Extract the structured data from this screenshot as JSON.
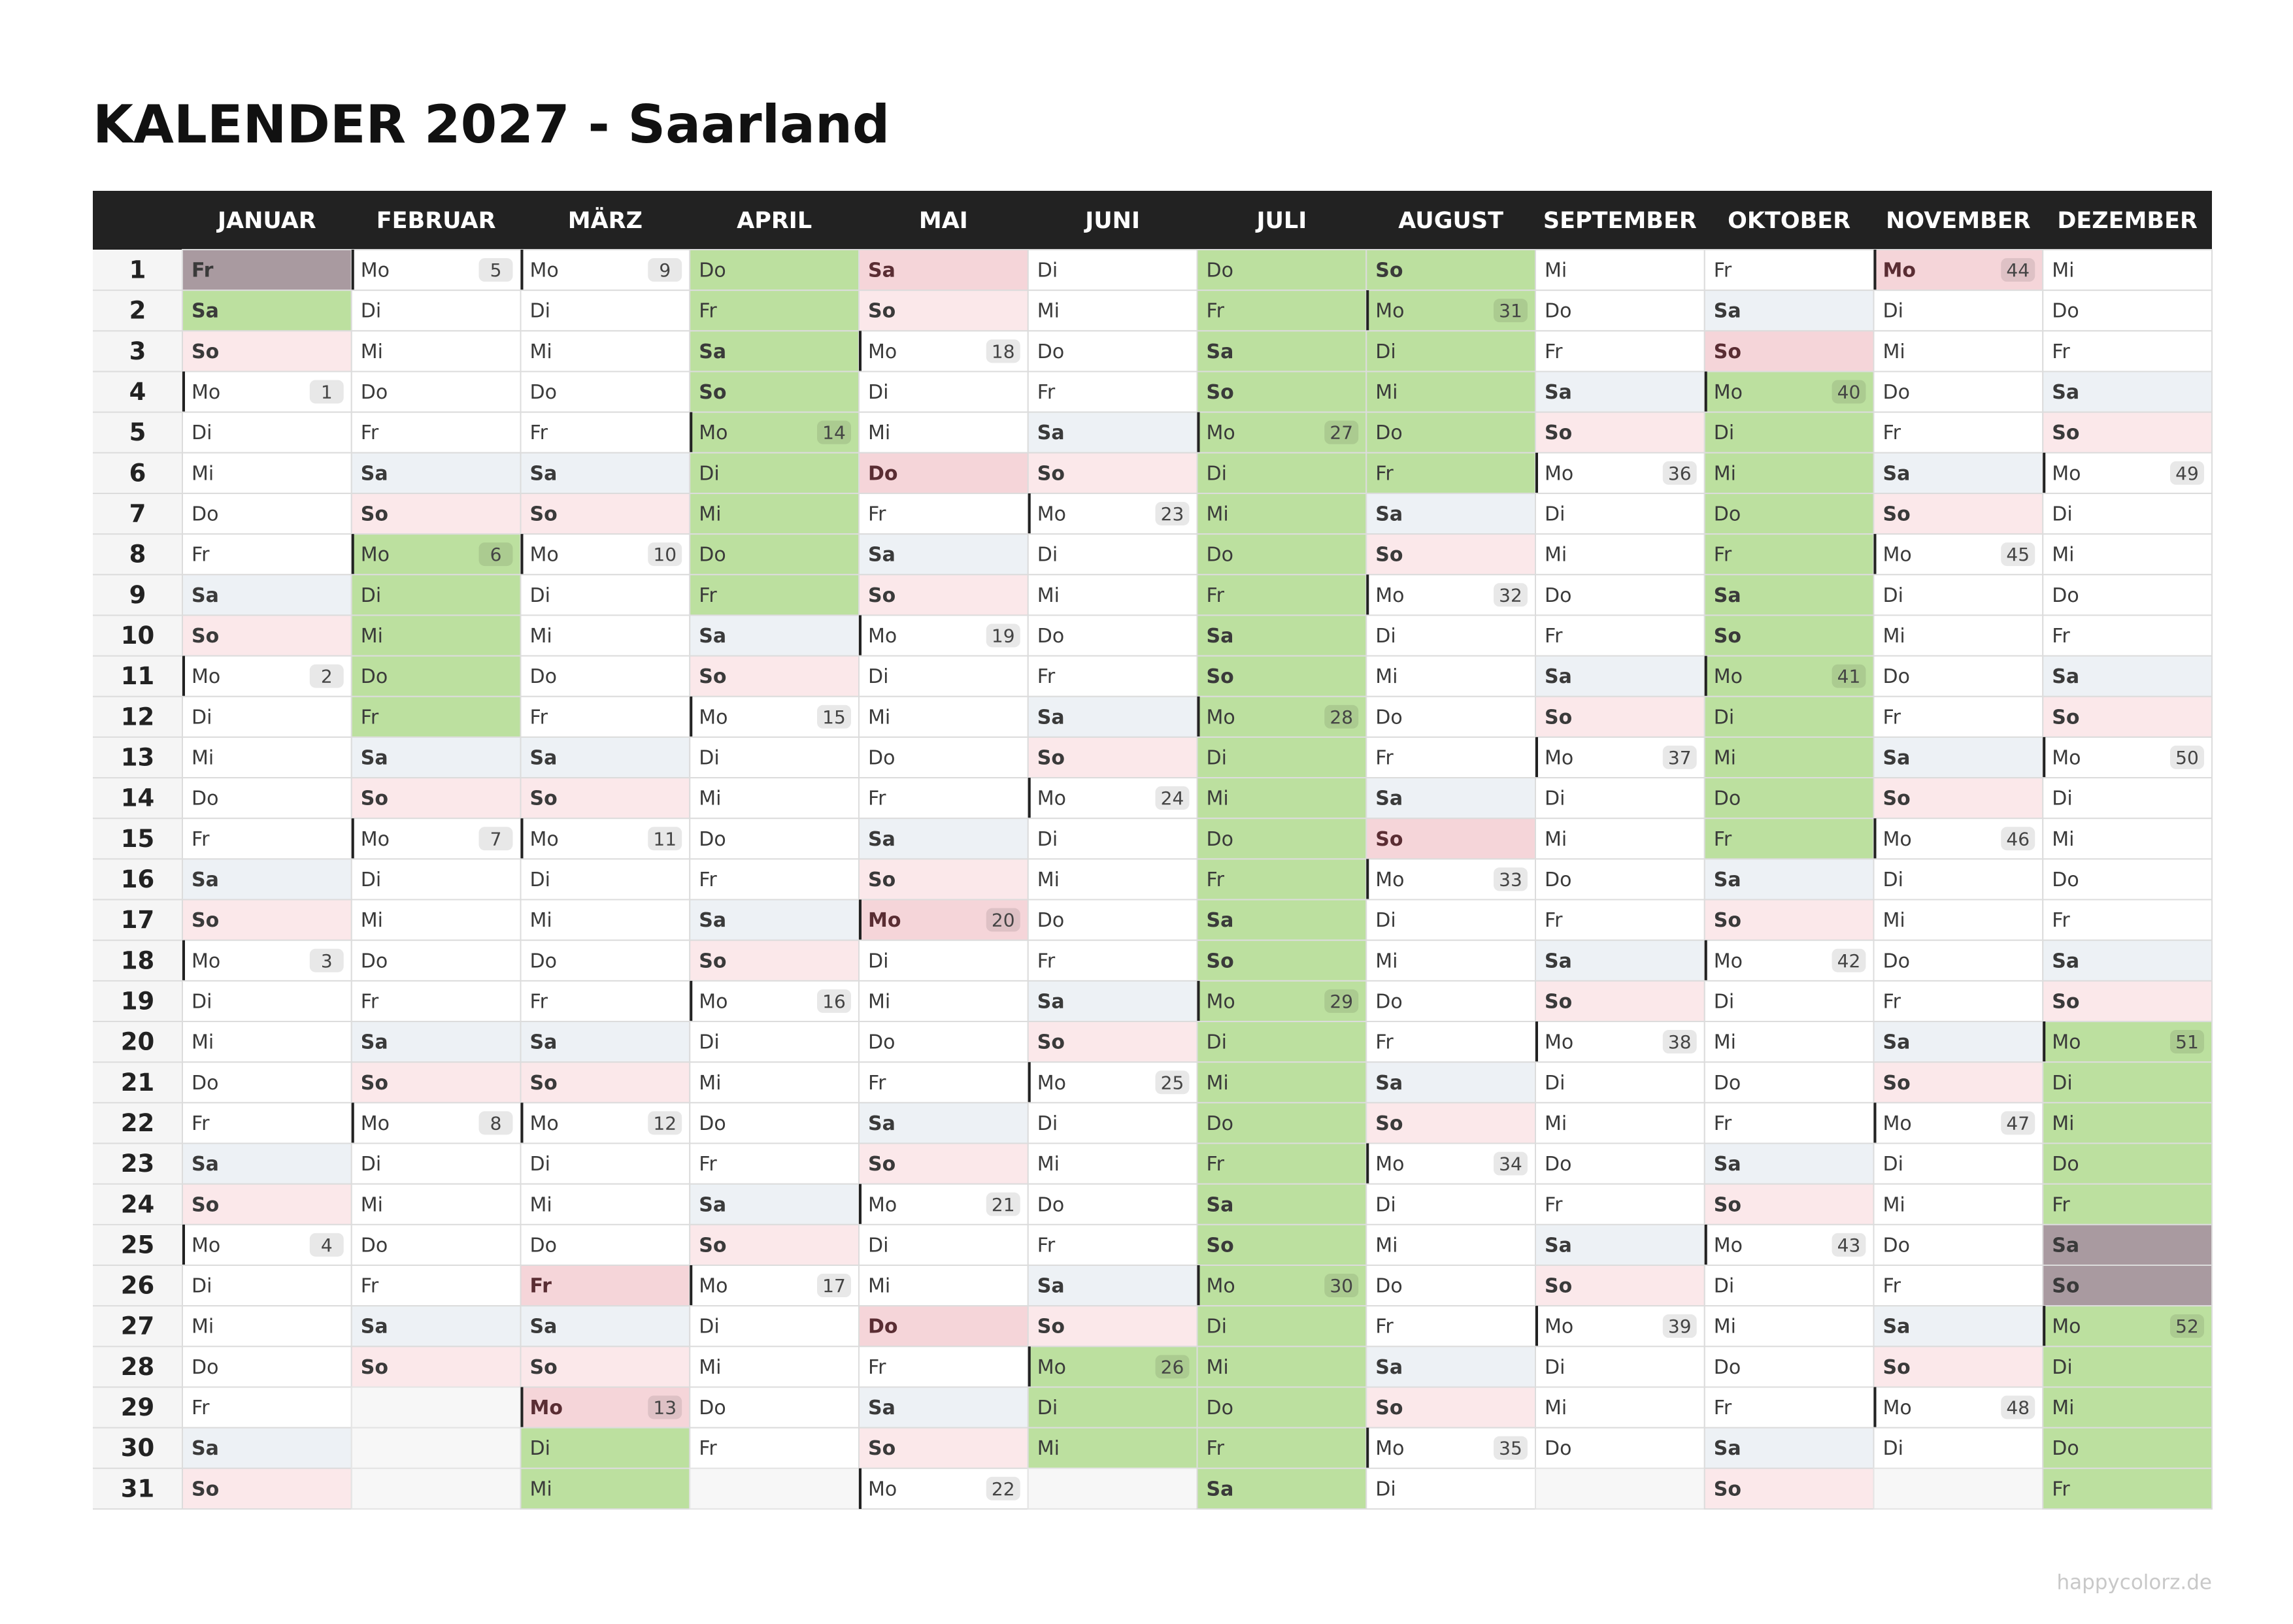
{
  "title": "KALENDER 2027 - Saarland",
  "day_numbers": [
    1,
    2,
    3,
    4,
    5,
    6,
    7,
    8,
    9,
    10,
    11,
    12,
    13,
    14,
    15,
    16,
    17,
    18,
    19,
    20,
    21,
    22,
    23,
    24,
    25,
    26,
    27,
    28,
    29,
    30,
    31
  ],
  "day_fills": {
    "Sa": "#edf1f5",
    "So": "#fbe8ea"
  },
  "mark_fills": {
    "ph": "#f5d5d9",
    "vac": "#bce09f",
    "dark": "#a99aa0"
  },
  "months": [
    {
      "name": "JANUAR",
      "days": [
        {
          "day": "Fr",
          "mark": "dark"
        },
        {
          "day": "Sa",
          "mark": "vac"
        },
        "So",
        {
          "day": "Mo",
          "week": 1
        },
        "Di",
        "Mi",
        "Do",
        "Fr",
        "Sa",
        "So",
        {
          "day": "Mo",
          "week": 2
        },
        "Di",
        "Mi",
        "Do",
        "Fr",
        "Sa",
        "So",
        {
          "day": "Mo",
          "week": 3
        },
        "Di",
        "Mi",
        "Do",
        "Fr",
        "Sa",
        "So",
        {
          "day": "Mo",
          "week": 4
        },
        "Di",
        "Mi",
        "Do",
        "Fr",
        "Sa",
        "So"
      ]
    },
    {
      "name": "FEBRUAR",
      "days": [
        {
          "day": "Mo",
          "week": 5
        },
        "Di",
        "Mi",
        "Do",
        "Fr",
        "Sa",
        "So",
        {
          "day": "Mo",
          "week": 6,
          "mark": "vac"
        },
        {
          "day": "Di",
          "mark": "vac"
        },
        {
          "day": "Mi",
          "mark": "vac"
        },
        {
          "day": "Do",
          "mark": "vac"
        },
        {
          "day": "Fr",
          "mark": "vac"
        },
        "Sa",
        "So",
        {
          "day": "Mo",
          "week": 7
        },
        "Di",
        "Mi",
        "Do",
        "Fr",
        "Sa",
        "So",
        {
          "day": "Mo",
          "week": 8
        },
        "Di",
        "Mi",
        "Do",
        "Fr",
        "Sa",
        "So"
      ]
    },
    {
      "name": "MÄRZ",
      "days": [
        {
          "day": "Mo",
          "week": 9
        },
        "Di",
        "Mi",
        "Do",
        "Fr",
        "Sa",
        "So",
        {
          "day": "Mo",
          "week": 10
        },
        "Di",
        "Mi",
        "Do",
        "Fr",
        "Sa",
        "So",
        {
          "day": "Mo",
          "week": 11
        },
        "Di",
        "Mi",
        "Do",
        "Fr",
        "Sa",
        "So",
        {
          "day": "Mo",
          "week": 12
        },
        "Di",
        "Mi",
        "Do",
        {
          "day": "Fr",
          "mark": "ph"
        },
        "Sa",
        "So",
        {
          "day": "Mo",
          "week": 13,
          "mark": "ph"
        },
        {
          "day": "Di",
          "mark": "vac"
        },
        {
          "day": "Mi",
          "mark": "vac"
        }
      ]
    },
    {
      "name": "APRIL",
      "days": [
        {
          "day": "Do",
          "mark": "vac"
        },
        {
          "day": "Fr",
          "mark": "vac"
        },
        {
          "day": "Sa",
          "mark": "vac"
        },
        {
          "day": "So",
          "mark": "vac"
        },
        {
          "day": "Mo",
          "week": 14,
          "mark": "vac"
        },
        {
          "day": "Di",
          "mark": "vac"
        },
        {
          "day": "Mi",
          "mark": "vac"
        },
        {
          "day": "Do",
          "mark": "vac"
        },
        {
          "day": "Fr",
          "mark": "vac"
        },
        "Sa",
        "So",
        {
          "day": "Mo",
          "week": 15
        },
        "Di",
        "Mi",
        "Do",
        "Fr",
        "Sa",
        "So",
        {
          "day": "Mo",
          "week": 16
        },
        "Di",
        "Mi",
        "Do",
        "Fr",
        "Sa",
        "So",
        {
          "day": "Mo",
          "week": 17
        },
        "Di",
        "Mi",
        "Do",
        "Fr"
      ]
    },
    {
      "name": "MAI",
      "days": [
        {
          "day": "Sa",
          "mark": "ph"
        },
        "So",
        {
          "day": "Mo",
          "week": 18
        },
        "Di",
        "Mi",
        {
          "day": "Do",
          "mark": "ph"
        },
        "Fr",
        "Sa",
        "So",
        {
          "day": "Mo",
          "week": 19
        },
        "Di",
        "Mi",
        "Do",
        "Fr",
        "Sa",
        "So",
        {
          "day": "Mo",
          "week": 20,
          "mark": "ph"
        },
        "Di",
        "Mi",
        "Do",
        "Fr",
        "Sa",
        "So",
        {
          "day": "Mo",
          "week": 21
        },
        "Di",
        "Mi",
        {
          "day": "Do",
          "mark": "ph"
        },
        "Fr",
        "Sa",
        "So",
        {
          "day": "Mo",
          "week": 22
        }
      ]
    },
    {
      "name": "JUNI",
      "days": [
        "Di",
        "Mi",
        "Do",
        "Fr",
        "Sa",
        "So",
        {
          "day": "Mo",
          "week": 23
        },
        "Di",
        "Mi",
        "Do",
        "Fr",
        "Sa",
        "So",
        {
          "day": "Mo",
          "week": 24
        },
        "Di",
        "Mi",
        "Do",
        "Fr",
        "Sa",
        "So",
        {
          "day": "Mo",
          "week": 25
        },
        "Di",
        "Mi",
        "Do",
        "Fr",
        "Sa",
        "So",
        {
          "day": "Mo",
          "week": 26,
          "mark": "vac"
        },
        {
          "day": "Di",
          "mark": "vac"
        },
        {
          "day": "Mi",
          "mark": "vac"
        }
      ]
    },
    {
      "name": "JULI",
      "days": [
        {
          "day": "Do",
          "mark": "vac"
        },
        {
          "day": "Fr",
          "mark": "vac"
        },
        {
          "day": "Sa",
          "mark": "vac"
        },
        {
          "day": "So",
          "mark": "vac"
        },
        {
          "day": "Mo",
          "week": 27,
          "mark": "vac"
        },
        {
          "day": "Di",
          "mark": "vac"
        },
        {
          "day": "Mi",
          "mark": "vac"
        },
        {
          "day": "Do",
          "mark": "vac"
        },
        {
          "day": "Fr",
          "mark": "vac"
        },
        {
          "day": "Sa",
          "mark": "vac"
        },
        {
          "day": "So",
          "mark": "vac"
        },
        {
          "day": "Mo",
          "week": 28,
          "mark": "vac"
        },
        {
          "day": "Di",
          "mark": "vac"
        },
        {
          "day": "Mi",
          "mark": "vac"
        },
        {
          "day": "Do",
          "mark": "vac"
        },
        {
          "day": "Fr",
          "mark": "vac"
        },
        {
          "day": "Sa",
          "mark": "vac"
        },
        {
          "day": "So",
          "mark": "vac"
        },
        {
          "day": "Mo",
          "week": 29,
          "mark": "vac"
        },
        {
          "day": "Di",
          "mark": "vac"
        },
        {
          "day": "Mi",
          "mark": "vac"
        },
        {
          "day": "Do",
          "mark": "vac"
        },
        {
          "day": "Fr",
          "mark": "vac"
        },
        {
          "day": "Sa",
          "mark": "vac"
        },
        {
          "day": "So",
          "mark": "vac"
        },
        {
          "day": "Mo",
          "week": 30,
          "mark": "vac"
        },
        {
          "day": "Di",
          "mark": "vac"
        },
        {
          "day": "Mi",
          "mark": "vac"
        },
        {
          "day": "Do",
          "mark": "vac"
        },
        {
          "day": "Fr",
          "mark": "vac"
        },
        {
          "day": "Sa",
          "mark": "vac"
        }
      ]
    },
    {
      "name": "AUGUST",
      "days": [
        {
          "day": "So",
          "mark": "vac"
        },
        {
          "day": "Mo",
          "week": 31,
          "mark": "vac"
        },
        {
          "day": "Di",
          "mark": "vac"
        },
        {
          "day": "Mi",
          "mark": "vac"
        },
        {
          "day": "Do",
          "mark": "vac"
        },
        {
          "day": "Fr",
          "mark": "vac"
        },
        "Sa",
        "So",
        {
          "day": "Mo",
          "week": 32
        },
        "Di",
        "Mi",
        "Do",
        "Fr",
        "Sa",
        {
          "day": "So",
          "mark": "ph"
        },
        {
          "day": "Mo",
          "week": 33
        },
        "Di",
        "Mi",
        "Do",
        "Fr",
        "Sa",
        "So",
        {
          "day": "Mo",
          "week": 34
        },
        "Di",
        "Mi",
        "Do",
        "Fr",
        "Sa",
        "So",
        {
          "day": "Mo",
          "week": 35
        },
        "Di"
      ]
    },
    {
      "name": "SEPTEMBER",
      "days": [
        "Mi",
        "Do",
        "Fr",
        "Sa",
        "So",
        {
          "day": "Mo",
          "week": 36
        },
        "Di",
        "Mi",
        "Do",
        "Fr",
        "Sa",
        "So",
        {
          "day": "Mo",
          "week": 37
        },
        "Di",
        "Mi",
        "Do",
        "Fr",
        "Sa",
        "So",
        {
          "day": "Mo",
          "week": 38
        },
        "Di",
        "Mi",
        "Do",
        "Fr",
        "Sa",
        "So",
        {
          "day": "Mo",
          "week": 39
        },
        "Di",
        "Mi",
        "Do"
      ]
    },
    {
      "name": "OKTOBER",
      "days": [
        "Fr",
        "Sa",
        {
          "day": "So",
          "mark": "ph"
        },
        {
          "day": "Mo",
          "week": 40,
          "mark": "vac"
        },
        {
          "day": "Di",
          "mark": "vac"
        },
        {
          "day": "Mi",
          "mark": "vac"
        },
        {
          "day": "Do",
          "mark": "vac"
        },
        {
          "day": "Fr",
          "mark": "vac"
        },
        {
          "day": "Sa",
          "mark": "vac"
        },
        {
          "day": "So",
          "mark": "vac"
        },
        {
          "day": "Mo",
          "week": 41,
          "mark": "vac"
        },
        {
          "day": "Di",
          "mark": "vac"
        },
        {
          "day": "Mi",
          "mark": "vac"
        },
        {
          "day": "Do",
          "mark": "vac"
        },
        {
          "day": "Fr",
          "mark": "vac"
        },
        "Sa",
        "So",
        {
          "day": "Mo",
          "week": 42
        },
        "Di",
        "Mi",
        "Do",
        "Fr",
        "Sa",
        "So",
        {
          "day": "Mo",
          "week": 43
        },
        "Di",
        "Mi",
        "Do",
        "Fr",
        "Sa",
        "So"
      ]
    },
    {
      "name": "NOVEMBER",
      "days": [
        {
          "day": "Mo",
          "week": 44,
          "mark": "ph"
        },
        "Di",
        "Mi",
        "Do",
        "Fr",
        "Sa",
        "So",
        {
          "day": "Mo",
          "week": 45
        },
        "Di",
        "Mi",
        "Do",
        "Fr",
        "Sa",
        "So",
        {
          "day": "Mo",
          "week": 46
        },
        "Di",
        "Mi",
        "Do",
        "Fr",
        "Sa",
        "So",
        {
          "day": "Mo",
          "week": 47
        },
        "Di",
        "Mi",
        "Do",
        "Fr",
        "Sa",
        "So",
        {
          "day": "Mo",
          "week": 48
        },
        "Di"
      ]
    },
    {
      "name": "DEZEMBER",
      "days": [
        "Mi",
        "Do",
        "Fr",
        "Sa",
        "So",
        {
          "day": "Mo",
          "week": 49
        },
        "Di",
        "Mi",
        "Do",
        "Fr",
        "Sa",
        "So",
        {
          "day": "Mo",
          "week": 50
        },
        "Di",
        "Mi",
        "Do",
        "Fr",
        "Sa",
        "So",
        {
          "day": "Mo",
          "week": 51,
          "mark": "vac"
        },
        {
          "day": "Di",
          "mark": "vac"
        },
        {
          "day": "Mi",
          "mark": "vac"
        },
        {
          "day": "Do",
          "mark": "vac"
        },
        {
          "day": "Fr",
          "mark": "vac"
        },
        {
          "day": "Sa",
          "mark": "dark"
        },
        {
          "day": "So",
          "mark": "dark"
        },
        {
          "day": "Mo",
          "week": 52,
          "mark": "vac"
        },
        {
          "day": "Di",
          "mark": "vac"
        },
        {
          "day": "Mi",
          "mark": "vac"
        },
        {
          "day": "Do",
          "mark": "vac"
        },
        {
          "day": "Fr",
          "mark": "vac"
        }
      ]
    }
  ],
  "footer": "happycolorz.de"
}
